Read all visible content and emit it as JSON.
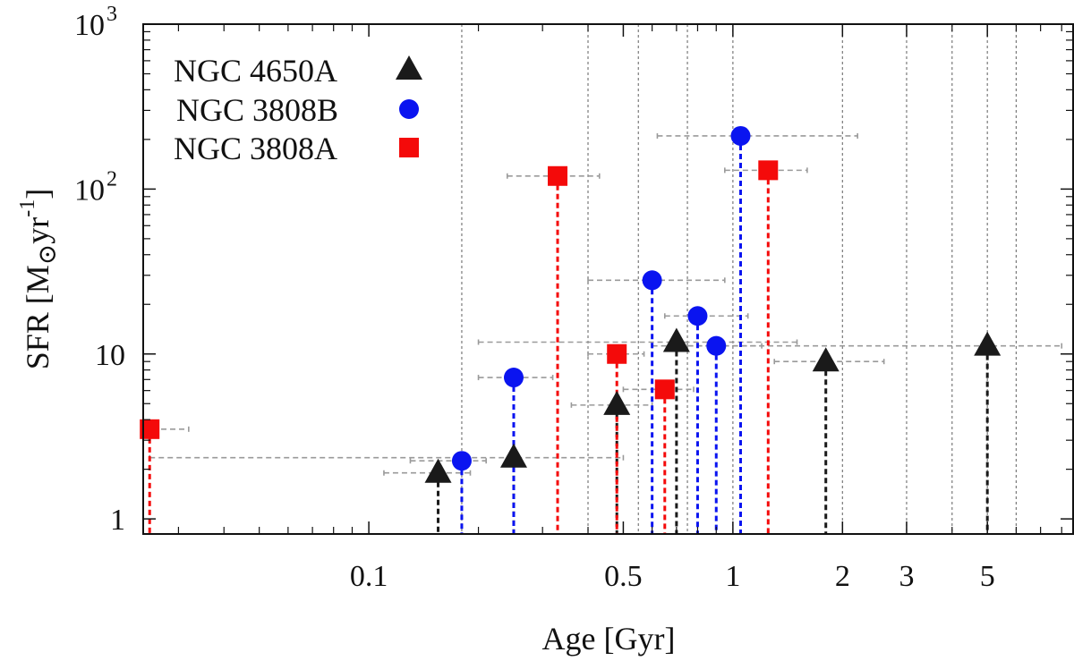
{
  "chart_data": {
    "type": "scatter",
    "xscale": "log",
    "yscale": "log",
    "xlim": [
      0.024,
      8.6
    ],
    "ylim": [
      0.81,
      1000
    ],
    "xlabel": "Age [Gyr]",
    "ylabel": {
      "base": "SFR [M",
      "subscript": "⊙",
      "mid": "yr",
      "superscript": "-1",
      "end": "]"
    },
    "x_ticks": [
      {
        "value": 0.1,
        "label": "0.1"
      },
      {
        "value": 0.5,
        "label": "0.5"
      },
      {
        "value": 1,
        "label": "1"
      },
      {
        "value": 2,
        "label": "2"
      },
      {
        "value": 3,
        "label": "3"
      },
      {
        "value": 5,
        "label": "5"
      }
    ],
    "x_minor_ticks": [
      0.03,
      0.04,
      0.05,
      0.06,
      0.07,
      0.08,
      0.09,
      0.2,
      0.3,
      0.4,
      0.6,
      0.7,
      0.8,
      0.9,
      4,
      6,
      7,
      8
    ],
    "y_ticks": [
      {
        "value": 1,
        "label": "1",
        "sup": ""
      },
      {
        "value": 10,
        "label": "10",
        "sup": ""
      },
      {
        "value": 100,
        "label": "10",
        "sup": "2"
      },
      {
        "value": 1000,
        "label": "10",
        "sup": "3"
      }
    ],
    "y_minor_ticks": [
      2,
      3,
      4,
      5,
      6,
      7,
      8,
      9,
      20,
      30,
      40,
      50,
      60,
      70,
      80,
      90,
      200,
      300,
      400,
      500,
      600,
      700,
      800,
      900
    ],
    "vlines": [
      0.18,
      0.4,
      0.55,
      0.75,
      1.0,
      2.0,
      3.0,
      4.0,
      5.0,
      6.0
    ],
    "series": [
      {
        "name": "NGC 4650A",
        "marker": "triangle",
        "color": "#1a1a1a",
        "points": [
          {
            "x": 0.155,
            "y": 1.9,
            "xlo": 0.11,
            "xhi": 0.19,
            "ylo": 1.85,
            "yhi": 1.95
          },
          {
            "x": 0.25,
            "y": 2.35,
            "xlo": 0.025,
            "xhi": 0.5,
            "ylo": 2.3,
            "yhi": 2.4
          },
          {
            "x": 0.48,
            "y": 4.9,
            "xlo": 0.36,
            "xhi": 0.6,
            "ylo": 4.8,
            "yhi": 5.0
          },
          {
            "x": 0.7,
            "y": 11.8,
            "xlo": 0.2,
            "xhi": 1.5,
            "ylo": 11.6,
            "yhi": 12.0
          },
          {
            "x": 1.8,
            "y": 9.0,
            "xlo": 1.3,
            "xhi": 2.6,
            "ylo": 8.8,
            "yhi": 9.2
          },
          {
            "x": 5.0,
            "y": 11.2,
            "xlo": 0.75,
            "xhi": 8.0,
            "ylo": 11.0,
            "yhi": 11.4
          }
        ]
      },
      {
        "name": "NGC 3808B",
        "marker": "circle",
        "color": "#0a14f0",
        "points": [
          {
            "x": 0.18,
            "y": 2.25,
            "xlo": 0.13,
            "xhi": 0.21,
            "ylo": 2.0,
            "yhi": 2.5
          },
          {
            "x": 0.25,
            "y": 7.2,
            "xlo": 0.2,
            "xhi": 0.32,
            "ylo": 6.5,
            "yhi": 8.0
          },
          {
            "x": 0.6,
            "y": 28,
            "xlo": 0.4,
            "xhi": 0.95,
            "ylo": 25,
            "yhi": 31
          },
          {
            "x": 0.8,
            "y": 17,
            "xlo": 0.65,
            "xhi": 1.1,
            "ylo": 15.5,
            "yhi": 18.5
          },
          {
            "x": 0.9,
            "y": 11.2,
            "xlo": 0.6,
            "xhi": 1.2,
            "ylo": 10.2,
            "yhi": 12.2
          },
          {
            "x": 1.05,
            "y": 210,
            "xlo": 0.62,
            "xhi": 2.2,
            "ylo": 190,
            "yhi": 230
          }
        ]
      },
      {
        "name": "NGC 3808A",
        "marker": "square",
        "color": "#f40a0a",
        "points": [
          {
            "x": 0.025,
            "y": 3.5,
            "xlo": 0.022,
            "xhi": 0.032,
            "ylo": 3.2,
            "yhi": 3.8
          },
          {
            "x": 0.33,
            "y": 120,
            "xlo": 0.24,
            "xhi": 0.43,
            "ylo": 110,
            "yhi": 132
          },
          {
            "x": 0.48,
            "y": 10,
            "xlo": 0.4,
            "xhi": 0.57,
            "ylo": 9.2,
            "yhi": 10.8
          },
          {
            "x": 0.65,
            "y": 6.1,
            "xlo": 0.5,
            "xhi": 0.78,
            "ylo": 5.6,
            "yhi": 6.6
          },
          {
            "x": 1.25,
            "y": 130,
            "xlo": 0.95,
            "xhi": 1.6,
            "ylo": 120,
            "yhi": 142
          }
        ]
      }
    ]
  },
  "legend": {
    "items": [
      {
        "label": "NGC 4650A",
        "marker": "triangle",
        "color": "#1a1a1a"
      },
      {
        "label": "NGC 3808B",
        "marker": "circle",
        "color": "#0a14f0"
      },
      {
        "label": "NGC 3808A",
        "marker": "square",
        "color": "#f40a0a"
      }
    ]
  },
  "styles": {
    "errorbar_color": "#9a9a9a",
    "vline_color": "#7a7a7a",
    "axis_color": "#111111"
  }
}
